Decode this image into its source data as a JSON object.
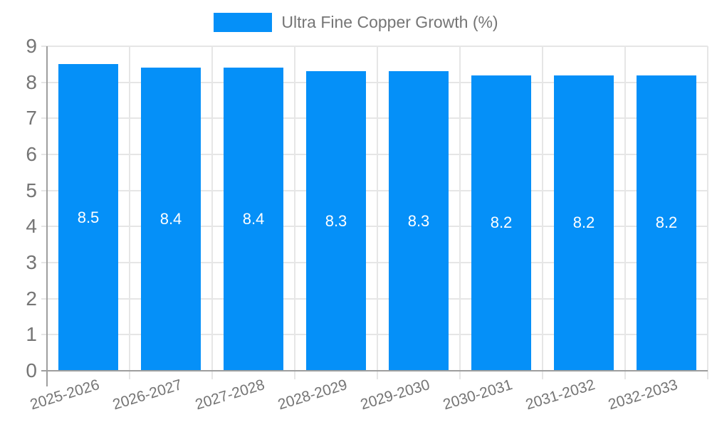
{
  "chart_data": {
    "type": "bar",
    "title": "Ultra Fine Copper Growth (%)",
    "legend": {
      "label": "Ultra Fine Copper Growth (%)",
      "position": "top-center",
      "swatch_shape": "rect"
    },
    "categories": [
      "2025-2026",
      "2026-2027",
      "2027-2028",
      "2028-2029",
      "2029-2030",
      "2030-2031",
      "2031-2032",
      "2032-2033"
    ],
    "values": [
      8.5,
      8.4,
      8.4,
      8.3,
      8.3,
      8.2,
      8.2,
      8.2
    ],
    "bar_labels": [
      "8.5",
      "8.4",
      "8.4",
      "8.3",
      "8.3",
      "8.2",
      "8.2",
      "8.2"
    ],
    "xlabel": "",
    "ylabel": "",
    "ylim": [
      0,
      9
    ],
    "y_ticks": [
      0,
      1,
      2,
      3,
      4,
      5,
      6,
      7,
      8,
      9
    ],
    "y_tick_labels": [
      "0",
      "1",
      "2",
      "3",
      "4",
      "5",
      "6",
      "7",
      "8",
      "9"
    ],
    "grid": true,
    "x_label_rotation_deg": -17,
    "colors": {
      "bar": "#0590f8",
      "bar_value_label": "#ffffff",
      "grid_line": "#e6e6e6",
      "axis_line": "#9e9e9e",
      "tick_label": "#757575",
      "background": "#ffffff"
    }
  }
}
